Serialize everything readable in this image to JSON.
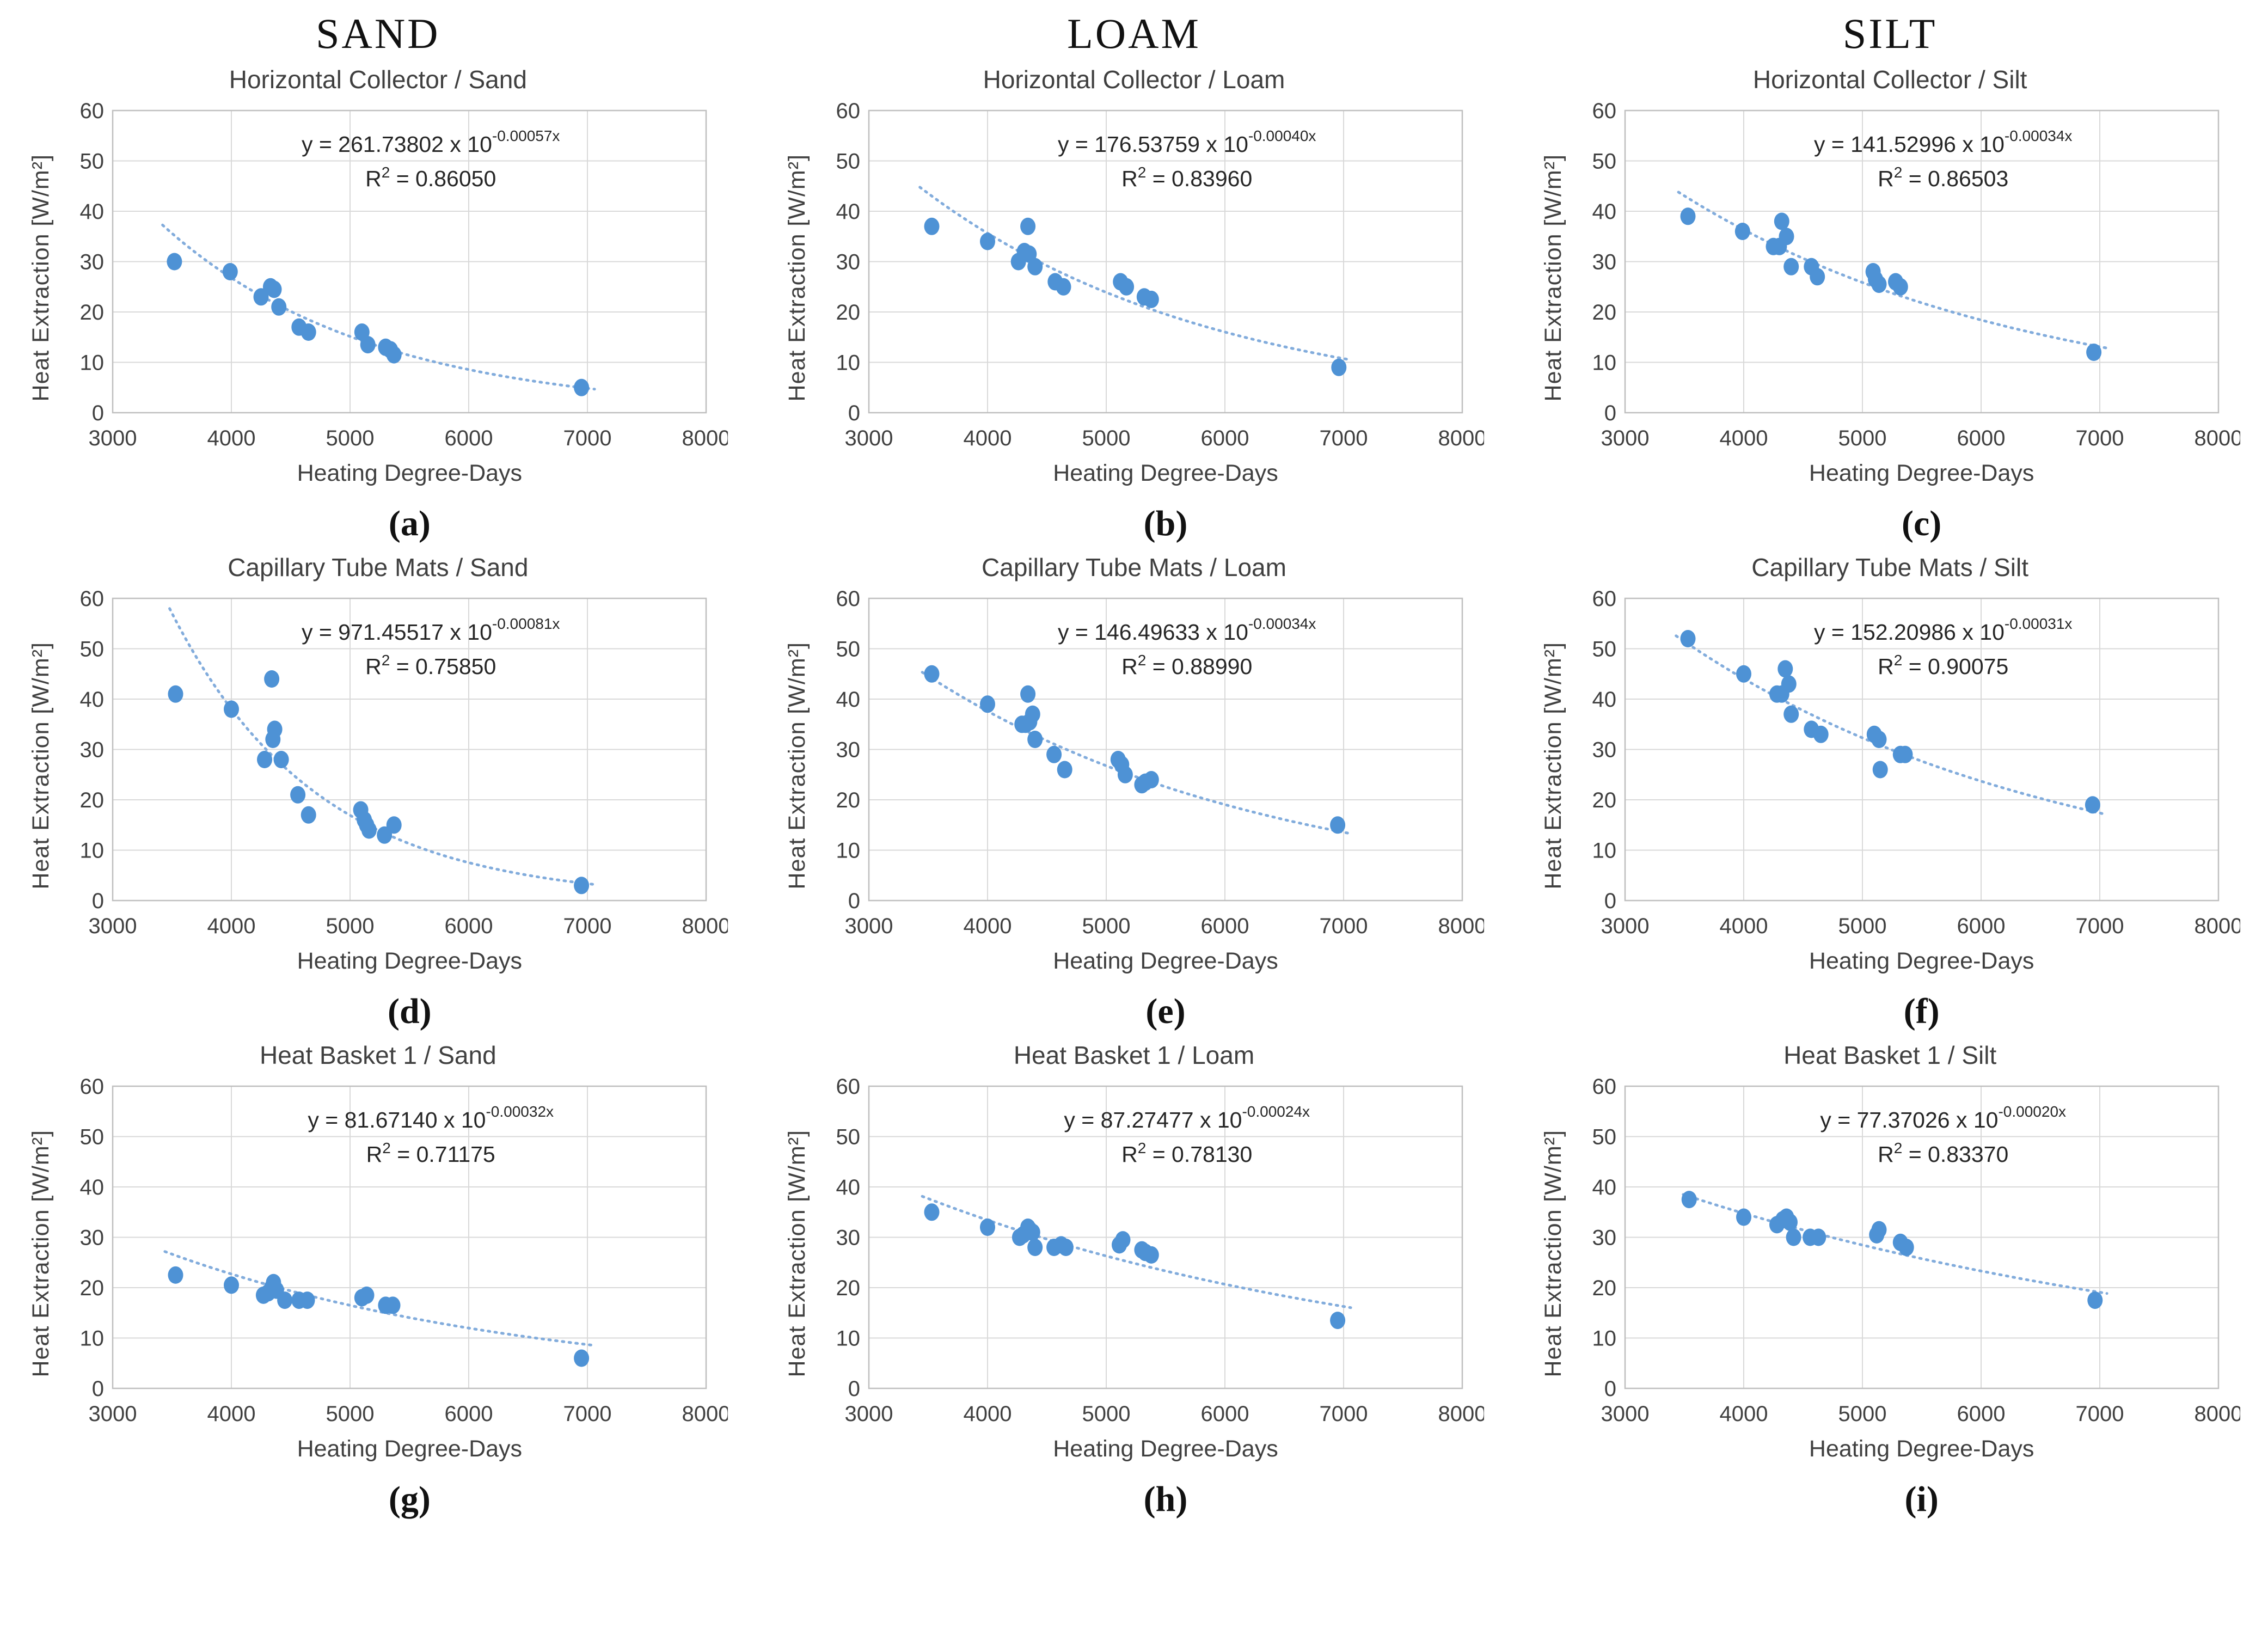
{
  "columns": [
    "SAND",
    "LOAM",
    "SILT"
  ],
  "axes": {
    "xlabel": "Heating Degree-Days",
    "ylabel": "Heat Extraction [W/m²]",
    "xlim": [
      3000,
      8000
    ],
    "ylim": [
      0,
      60
    ],
    "xticks": [
      3000,
      4000,
      5000,
      6000,
      7000,
      8000
    ],
    "yticks": [
      0,
      10,
      20,
      30,
      40,
      50,
      60
    ],
    "grid": true
  },
  "style": {
    "point_color": "#4e92d5",
    "trend_color": "#82acdc",
    "grid_color": "#d9d9d9",
    "border_color": "#bfbfbf",
    "text_color": "#404040",
    "equation_color": "#262626"
  },
  "chart_data": [
    {
      "type": "scatter",
      "label": "(a)",
      "title": "Horizontal Collector / Sand",
      "equation": {
        "prefix": "y = 261.73802 x 10",
        "exponent": "-0.00057x",
        "r2": "0.86050"
      },
      "trend": {
        "a": 261.73802,
        "b": -0.00057,
        "x0": 3420,
        "x1": 7060
      },
      "points": [
        [
          3520,
          30
        ],
        [
          3990,
          28
        ],
        [
          4250,
          23
        ],
        [
          4330,
          25
        ],
        [
          4360,
          24.5
        ],
        [
          4400,
          21
        ],
        [
          4570,
          17
        ],
        [
          4650,
          16
        ],
        [
          5100,
          16
        ],
        [
          5150,
          13.5
        ],
        [
          5300,
          13
        ],
        [
          5340,
          12.5
        ],
        [
          5370,
          11.5
        ],
        [
          6950,
          5
        ]
      ]
    },
    {
      "type": "scatter",
      "label": "(b)",
      "title": "Horizontal Collector / Loam",
      "equation": {
        "prefix": "y = 176.53759 x 10",
        "exponent": "-0.00040x",
        "r2": "0.83960"
      },
      "trend": {
        "a": 176.53759,
        "b": -0.0004,
        "x0": 3430,
        "x1": 7060
      },
      "points": [
        [
          3530,
          37
        ],
        [
          4000,
          34
        ],
        [
          4340,
          37
        ],
        [
          4260,
          30
        ],
        [
          4310,
          32
        ],
        [
          4350,
          31.5
        ],
        [
          4400,
          29
        ],
        [
          4570,
          26
        ],
        [
          4640,
          25
        ],
        [
          5120,
          26
        ],
        [
          5170,
          25
        ],
        [
          5320,
          23
        ],
        [
          5380,
          22.5
        ],
        [
          6960,
          9
        ]
      ]
    },
    {
      "type": "scatter",
      "label": "(c)",
      "title": "Horizontal Collector / Silt",
      "equation": {
        "prefix": "y = 141.52996 x 10",
        "exponent": "-0.00034x",
        "r2": "0.86503"
      },
      "trend": {
        "a": 141.52996,
        "b": -0.00034,
        "x0": 3450,
        "x1": 7060
      },
      "points": [
        [
          3530,
          39
        ],
        [
          3990,
          36
        ],
        [
          4320,
          38
        ],
        [
          4360,
          35
        ],
        [
          4250,
          33
        ],
        [
          4300,
          33
        ],
        [
          4400,
          29
        ],
        [
          4570,
          29
        ],
        [
          4620,
          27
        ],
        [
          5090,
          28
        ],
        [
          5110,
          26.5
        ],
        [
          5140,
          25.5
        ],
        [
          5280,
          26
        ],
        [
          5320,
          25
        ],
        [
          6950,
          12
        ]
      ]
    },
    {
      "type": "scatter",
      "label": "(d)",
      "title": "Capillary Tube Mats / Sand",
      "equation": {
        "prefix": "y = 971.45517 x 10",
        "exponent": "-0.00081x",
        "r2": "0.75850"
      },
      "trend": {
        "a": 971.45517,
        "b": -0.00081,
        "x0": 3480,
        "x1": 7060
      },
      "points": [
        [
          3530,
          41
        ],
        [
          4000,
          38
        ],
        [
          4340,
          44
        ],
        [
          4365,
          34
        ],
        [
          4350,
          32
        ],
        [
          4280,
          28
        ],
        [
          4420,
          28
        ],
        [
          4560,
          21
        ],
        [
          4650,
          17
        ],
        [
          5090,
          18
        ],
        [
          5120,
          16
        ],
        [
          5140,
          15
        ],
        [
          5160,
          14
        ],
        [
          5290,
          13
        ],
        [
          5370,
          15
        ],
        [
          6950,
          3
        ]
      ]
    },
    {
      "type": "scatter",
      "label": "(e)",
      "title": "Capillary Tube Mats / Loam",
      "equation": {
        "prefix": "y = 146.49633 x 10",
        "exponent": "-0.00034x",
        "r2": "0.88990"
      },
      "trend": {
        "a": 146.49633,
        "b": -0.00034,
        "x0": 3450,
        "x1": 7060
      },
      "points": [
        [
          3530,
          45
        ],
        [
          4000,
          39
        ],
        [
          4340,
          41
        ],
        [
          4290,
          35
        ],
        [
          4320,
          35
        ],
        [
          4355,
          35.5
        ],
        [
          4380,
          37
        ],
        [
          4400,
          32
        ],
        [
          4560,
          29
        ],
        [
          4650,
          26
        ],
        [
          5100,
          28
        ],
        [
          5130,
          27
        ],
        [
          5160,
          25
        ],
        [
          5300,
          23
        ],
        [
          5330,
          23.5
        ],
        [
          5380,
          24
        ],
        [
          6950,
          15
        ]
      ]
    },
    {
      "type": "scatter",
      "label": "(f)",
      "title": "Capillary Tube Mats / Silt",
      "equation": {
        "prefix": "y = 152.20986 x 10",
        "exponent": "-0.00031x",
        "r2": "0.90075"
      },
      "trend": {
        "a": 152.20986,
        "b": -0.00031,
        "x0": 3430,
        "x1": 7060
      },
      "points": [
        [
          3530,
          52
        ],
        [
          4000,
          45
        ],
        [
          4280,
          41
        ],
        [
          4320,
          41
        ],
        [
          4350,
          46
        ],
        [
          4380,
          43
        ],
        [
          4400,
          37
        ],
        [
          4570,
          34
        ],
        [
          4650,
          33
        ],
        [
          5100,
          33
        ],
        [
          5140,
          32
        ],
        [
          5150,
          26
        ],
        [
          5320,
          29
        ],
        [
          5360,
          29
        ],
        [
          6940,
          19
        ]
      ]
    },
    {
      "type": "scatter",
      "label": "(g)",
      "title": "Heat Basket 1 / Sand",
      "equation": {
        "prefix": "y = 81.67140 x 10",
        "exponent": "-0.00032x",
        "r2": "0.71175"
      },
      "trend": {
        "a": 81.6714,
        "b": -0.00032,
        "x0": 3440,
        "x1": 7060
      },
      "points": [
        [
          3530,
          22.5
        ],
        [
          4000,
          20.5
        ],
        [
          4270,
          18.5
        ],
        [
          4310,
          19
        ],
        [
          4340,
          20
        ],
        [
          4355,
          21
        ],
        [
          4380,
          19.5
        ],
        [
          4450,
          17.5
        ],
        [
          4570,
          17.5
        ],
        [
          4640,
          17.5
        ],
        [
          5100,
          18
        ],
        [
          5140,
          18.5
        ],
        [
          5300,
          16.5
        ],
        [
          5360,
          16.5
        ],
        [
          6950,
          6
        ]
      ]
    },
    {
      "type": "scatter",
      "label": "(h)",
      "title": "Heat Basket 1 / Loam",
      "equation": {
        "prefix": "y = 87.27477 x 10",
        "exponent": "-0.00024x",
        "r2": "0.78130"
      },
      "trend": {
        "a": 87.27477,
        "b": -0.00024,
        "x0": 3450,
        "x1": 7060
      },
      "points": [
        [
          3530,
          35
        ],
        [
          4000,
          32
        ],
        [
          4270,
          30
        ],
        [
          4300,
          30.5
        ],
        [
          4340,
          32
        ],
        [
          4355,
          31.5
        ],
        [
          4380,
          31
        ],
        [
          4400,
          28
        ],
        [
          4560,
          28
        ],
        [
          4620,
          28.5
        ],
        [
          4660,
          28
        ],
        [
          5110,
          28.5
        ],
        [
          5140,
          29.5
        ],
        [
          5300,
          27.5
        ],
        [
          5330,
          27
        ],
        [
          5380,
          26.5
        ],
        [
          6950,
          13.5
        ]
      ]
    },
    {
      "type": "scatter",
      "label": "(i)",
      "title": "Heat Basket 1 / Silt",
      "equation": {
        "prefix": "y = 77.37026 x 10",
        "exponent": "-0.00020x",
        "r2": "0.83370"
      },
      "trend": {
        "a": 77.37026,
        "b": -0.0002,
        "x0": 3490,
        "x1": 7060
      },
      "points": [
        [
          3540,
          37.5
        ],
        [
          4000,
          34
        ],
        [
          4280,
          32.5
        ],
        [
          4330,
          33.5
        ],
        [
          4360,
          34
        ],
        [
          4390,
          33
        ],
        [
          4420,
          30
        ],
        [
          4560,
          30
        ],
        [
          4630,
          30
        ],
        [
          5120,
          30.5
        ],
        [
          5140,
          31.5
        ],
        [
          5320,
          29
        ],
        [
          5370,
          28
        ],
        [
          6960,
          17.5
        ]
      ]
    }
  ]
}
